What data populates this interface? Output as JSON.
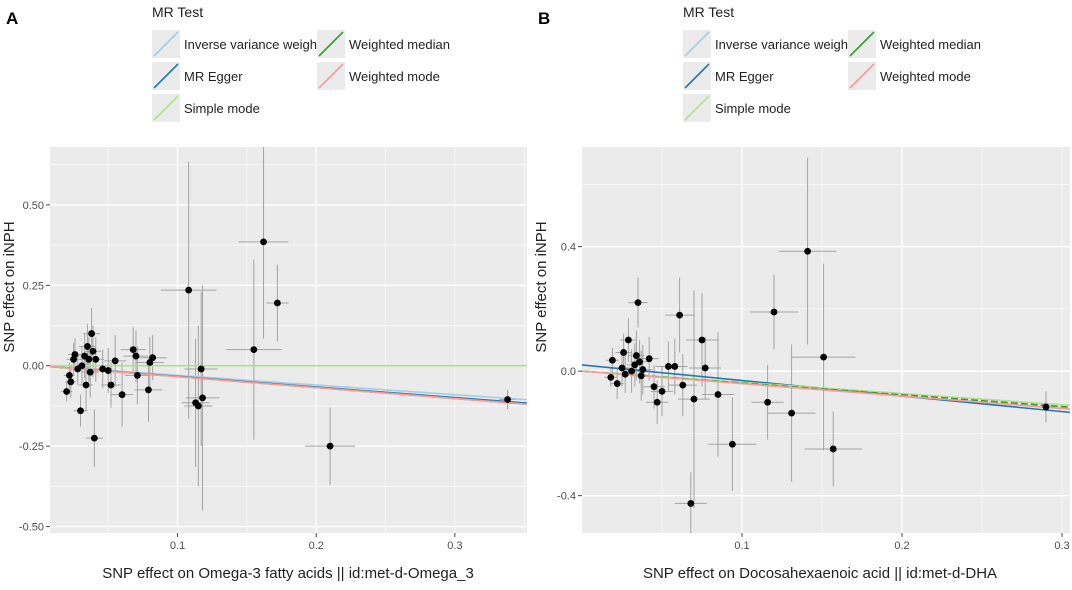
{
  "legend": {
    "title": "MR Test",
    "entries": [
      {
        "name": "Inverse variance weighted",
        "color": "#a6cee3"
      },
      {
        "name": "Weighted median",
        "color": "#33a02c"
      },
      {
        "name": "MR Egger",
        "color": "#1f78b4"
      },
      {
        "name": "Weighted mode",
        "color": "#fb9a99"
      },
      {
        "name": "Simple mode",
        "color": "#b2df8a"
      }
    ]
  },
  "colors": {
    "panel_bg": "#ebebeb",
    "grid": "#ffffff",
    "point": "#000000",
    "errorbar": "#a3a3a3"
  },
  "chart_data": [
    {
      "panel_label": "A",
      "type": "scatter",
      "xlabel": "SNP effect on Omega-3 fatty acids || id:met-d-Omega_3",
      "ylabel": "SNP effect on iNPH",
      "xlim": [
        0.008,
        0.352
      ],
      "ylim": [
        -0.52,
        0.68
      ],
      "xticks": [
        0.1,
        0.2,
        0.3
      ],
      "xticklabels": [
        "0.1",
        "0.2",
        "0.3"
      ],
      "yticks": [
        -0.5,
        -0.25,
        0.0,
        0.25,
        0.5
      ],
      "yticklabels": [
        "-0.50",
        "-0.25",
        "0.00",
        "0.25",
        "0.50"
      ],
      "points": [
        {
          "x": 0.02,
          "y": -0.08,
          "xerr": 0.004,
          "yerr": 0.03
        },
        {
          "x": 0.022,
          "y": -0.03,
          "xerr": 0.004,
          "yerr": 0.04
        },
        {
          "x": 0.023,
          "y": -0.05,
          "xerr": 0.004,
          "yerr": 0.05
        },
        {
          "x": 0.025,
          "y": 0.02,
          "xerr": 0.005,
          "yerr": 0.05
        },
        {
          "x": 0.026,
          "y": 0.035,
          "xerr": 0.005,
          "yerr": 0.05
        },
        {
          "x": 0.028,
          "y": -0.01,
          "xerr": 0.005,
          "yerr": 0.05
        },
        {
          "x": 0.03,
          "y": -0.14,
          "xerr": 0.005,
          "yerr": 0.05
        },
        {
          "x": 0.031,
          "y": 0.0,
          "xerr": 0.005,
          "yerr": 0.06
        },
        {
          "x": 0.033,
          "y": 0.03,
          "xerr": 0.005,
          "yerr": 0.07
        },
        {
          "x": 0.034,
          "y": -0.06,
          "xerr": 0.005,
          "yerr": 0.08
        },
        {
          "x": 0.035,
          "y": 0.06,
          "xerr": 0.006,
          "yerr": 0.07
        },
        {
          "x": 0.036,
          "y": 0.02,
          "xerr": 0.006,
          "yerr": 0.07
        },
        {
          "x": 0.037,
          "y": -0.02,
          "xerr": 0.006,
          "yerr": 0.08
        },
        {
          "x": 0.038,
          "y": 0.1,
          "xerr": 0.006,
          "yerr": 0.08
        },
        {
          "x": 0.039,
          "y": 0.045,
          "xerr": 0.006,
          "yerr": 0.08
        },
        {
          "x": 0.04,
          "y": -0.225,
          "xerr": 0.006,
          "yerr": 0.09
        },
        {
          "x": 0.041,
          "y": 0.02,
          "xerr": 0.006,
          "yerr": 0.07
        },
        {
          "x": 0.046,
          "y": -0.01,
          "xerr": 0.007,
          "yerr": 0.06
        },
        {
          "x": 0.05,
          "y": -0.015,
          "xerr": 0.007,
          "yerr": 0.07
        },
        {
          "x": 0.052,
          "y": -0.06,
          "xerr": 0.007,
          "yerr": 0.07
        },
        {
          "x": 0.055,
          "y": 0.015,
          "xerr": 0.008,
          "yerr": 0.08
        },
        {
          "x": 0.06,
          "y": -0.09,
          "xerr": 0.008,
          "yerr": 0.1
        },
        {
          "x": 0.068,
          "y": 0.05,
          "xerr": 0.009,
          "yerr": 0.07
        },
        {
          "x": 0.07,
          "y": 0.03,
          "xerr": 0.009,
          "yerr": 0.08
        },
        {
          "x": 0.071,
          "y": -0.03,
          "xerr": 0.009,
          "yerr": 0.09
        },
        {
          "x": 0.079,
          "y": -0.075,
          "xerr": 0.01,
          "yerr": 0.1
        },
        {
          "x": 0.08,
          "y": 0.01,
          "xerr": 0.01,
          "yerr": 0.08
        },
        {
          "x": 0.082,
          "y": 0.025,
          "xerr": 0.01,
          "yerr": 0.07
        },
        {
          "x": 0.108,
          "y": 0.235,
          "xerr": 0.02,
          "yerr": 0.4
        },
        {
          "x": 0.113,
          "y": -0.115,
          "xerr": 0.01,
          "yerr": 0.2
        },
        {
          "x": 0.115,
          "y": -0.125,
          "xerr": 0.01,
          "yerr": 0.25
        },
        {
          "x": 0.117,
          "y": -0.01,
          "xerr": 0.012,
          "yerr": 0.24
        },
        {
          "x": 0.118,
          "y": -0.1,
          "xerr": 0.012,
          "yerr": 0.35
        },
        {
          "x": 0.155,
          "y": 0.05,
          "xerr": 0.02,
          "yerr": 0.28
        },
        {
          "x": 0.162,
          "y": 0.385,
          "xerr": 0.018,
          "yerr": 0.3
        },
        {
          "x": 0.172,
          "y": 0.195,
          "xerr": 0.008,
          "yerr": 0.12
        },
        {
          "x": 0.21,
          "y": -0.25,
          "xerr": 0.018,
          "yerr": 0.12
        },
        {
          "x": 0.338,
          "y": -0.105,
          "xerr": 0.006,
          "yerr": 0.03
        }
      ],
      "lines": [
        {
          "method": "Inverse variance weighted",
          "slope": -0.3,
          "intercept": 0.0
        },
        {
          "method": "MR Egger",
          "slope": -0.33,
          "intercept": 0.0
        },
        {
          "method": "Simple mode",
          "slope": 0.0,
          "intercept": 0.0
        },
        {
          "method": "Weighted median",
          "slope": -0.34,
          "intercept": 0.0
        },
        {
          "method": "Weighted mode",
          "slope": -0.34,
          "intercept": 0.0
        }
      ]
    },
    {
      "panel_label": "B",
      "type": "scatter",
      "xlabel": "SNP effect on Docosahexaenoic acid || id:met-d-DHA",
      "ylabel": "SNP effect on iNPH",
      "xlim": [
        0.0,
        0.305
      ],
      "ylim": [
        -0.52,
        0.72
      ],
      "xticks": [
        0.1,
        0.2,
        0.3
      ],
      "xticklabels": [
        "0.1",
        "0.2",
        "0.3"
      ],
      "yticks": [
        -0.4,
        0.0,
        0.4
      ],
      "yticklabels": [
        "-0.4",
        "0.0",
        "0.4"
      ],
      "points": [
        {
          "x": 0.018,
          "y": -0.02,
          "xerr": 0.004,
          "yerr": 0.03
        },
        {
          "x": 0.019,
          "y": 0.035,
          "xerr": 0.004,
          "yerr": 0.04
        },
        {
          "x": 0.022,
          "y": -0.04,
          "xerr": 0.004,
          "yerr": 0.05
        },
        {
          "x": 0.025,
          "y": 0.01,
          "xerr": 0.005,
          "yerr": 0.06
        },
        {
          "x": 0.026,
          "y": 0.06,
          "xerr": 0.005,
          "yerr": 0.06
        },
        {
          "x": 0.027,
          "y": -0.01,
          "xerr": 0.005,
          "yerr": 0.06
        },
        {
          "x": 0.029,
          "y": 0.1,
          "xerr": 0.005,
          "yerr": 0.07
        },
        {
          "x": 0.031,
          "y": 0.0,
          "xerr": 0.005,
          "yerr": 0.07
        },
        {
          "x": 0.033,
          "y": 0.02,
          "xerr": 0.005,
          "yerr": 0.07
        },
        {
          "x": 0.034,
          "y": 0.05,
          "xerr": 0.005,
          "yerr": 0.08
        },
        {
          "x": 0.035,
          "y": 0.22,
          "xerr": 0.006,
          "yerr": 0.08
        },
        {
          "x": 0.036,
          "y": 0.03,
          "xerr": 0.006,
          "yerr": 0.07
        },
        {
          "x": 0.037,
          "y": -0.015,
          "xerr": 0.006,
          "yerr": 0.08
        },
        {
          "x": 0.038,
          "y": 0.005,
          "xerr": 0.006,
          "yerr": 0.08
        },
        {
          "x": 0.042,
          "y": 0.04,
          "xerr": 0.006,
          "yerr": 0.07
        },
        {
          "x": 0.045,
          "y": -0.05,
          "xerr": 0.007,
          "yerr": 0.07
        },
        {
          "x": 0.047,
          "y": -0.1,
          "xerr": 0.007,
          "yerr": 0.07
        },
        {
          "x": 0.05,
          "y": -0.065,
          "xerr": 0.007,
          "yerr": 0.08
        },
        {
          "x": 0.054,
          "y": 0.015,
          "xerr": 0.008,
          "yerr": 0.08
        },
        {
          "x": 0.058,
          "y": 0.015,
          "xerr": 0.008,
          "yerr": 0.09
        },
        {
          "x": 0.061,
          "y": 0.18,
          "xerr": 0.009,
          "yerr": 0.12
        },
        {
          "x": 0.063,
          "y": -0.045,
          "xerr": 0.009,
          "yerr": 0.1
        },
        {
          "x": 0.068,
          "y": -0.425,
          "xerr": 0.01,
          "yerr": 0.1
        },
        {
          "x": 0.07,
          "y": -0.09,
          "xerr": 0.01,
          "yerr": 0.35
        },
        {
          "x": 0.075,
          "y": 0.1,
          "xerr": 0.01,
          "yerr": 0.15
        },
        {
          "x": 0.077,
          "y": 0.01,
          "xerr": 0.01,
          "yerr": 0.1
        },
        {
          "x": 0.085,
          "y": -0.075,
          "xerr": 0.01,
          "yerr": 0.2
        },
        {
          "x": 0.094,
          "y": -0.235,
          "xerr": 0.015,
          "yerr": 0.15
        },
        {
          "x": 0.116,
          "y": -0.1,
          "xerr": 0.01,
          "yerr": 0.12
        },
        {
          "x": 0.12,
          "y": 0.19,
          "xerr": 0.015,
          "yerr": 0.12
        },
        {
          "x": 0.131,
          "y": -0.135,
          "xerr": 0.015,
          "yerr": 0.22
        },
        {
          "x": 0.141,
          "y": 0.385,
          "xerr": 0.018,
          "yerr": 0.3
        },
        {
          "x": 0.151,
          "y": 0.045,
          "xerr": 0.02,
          "yerr": 0.3
        },
        {
          "x": 0.157,
          "y": -0.25,
          "xerr": 0.018,
          "yerr": 0.12
        },
        {
          "x": 0.29,
          "y": -0.115,
          "xerr": 0.006,
          "yerr": 0.05
        }
      ],
      "lines": [
        {
          "method": "Inverse variance weighted",
          "slope": -0.4,
          "intercept": 0.0
        },
        {
          "method": "MR Egger",
          "slope": -0.5,
          "intercept": 0.02
        },
        {
          "method": "Simple mode",
          "slope": -0.36,
          "intercept": 0.0
        },
        {
          "method": "Weighted median",
          "slope": -0.38,
          "intercept": 0.0
        },
        {
          "method": "Weighted mode",
          "slope": -0.4,
          "intercept": 0.0
        }
      ]
    }
  ]
}
